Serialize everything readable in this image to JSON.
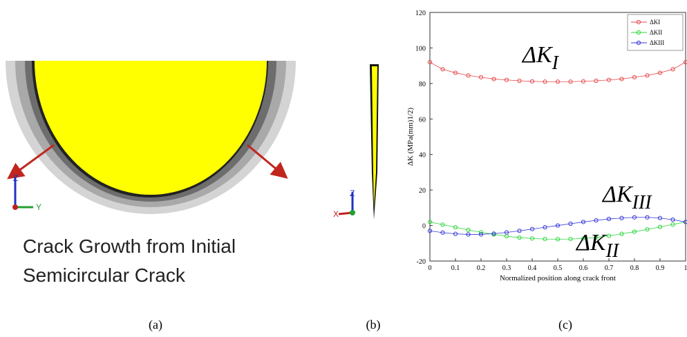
{
  "figure": {
    "panel_a_caption_line1": "Crack Growth from Initial",
    "panel_a_caption_line2": "Semicircular Crack",
    "axis_z": "Z",
    "axis_y": "Y",
    "axis_x": "X",
    "captions": [
      "(a)",
      "(b)",
      "(c)"
    ]
  },
  "chart_data": {
    "type": "scatter-line",
    "xlabel": "Normalized position along crack front",
    "ylabel": "ΔK (MPa(mm)1/2)",
    "x": [
      0,
      0.05,
      0.1,
      0.15,
      0.2,
      0.25,
      0.3,
      0.35,
      0.4,
      0.45,
      0.5,
      0.55,
      0.6,
      0.65,
      0.7,
      0.75,
      0.8,
      0.85,
      0.9,
      0.95,
      1
    ],
    "series": [
      {
        "name": "ΔKI",
        "color": "#e8474a",
        "values": [
          92,
          88,
          86,
          84.5,
          83.5,
          82.5,
          82,
          81.5,
          81.2,
          81,
          81,
          81,
          81.2,
          81.5,
          82,
          82.5,
          83.5,
          84.5,
          86,
          88,
          92
        ]
      },
      {
        "name": "ΔKII",
        "color": "#2bd63a",
        "values": [
          2,
          0.5,
          -1,
          -2.5,
          -3.8,
          -5,
          -6,
          -6.8,
          -7.3,
          -7.6,
          -7.7,
          -7.6,
          -7.3,
          -6.7,
          -5.8,
          -4.7,
          -3.5,
          -2.2,
          -0.8,
          0.6,
          2
        ]
      },
      {
        "name": "ΔKIII",
        "color": "#3434d8",
        "values": [
          -3,
          -4,
          -4.7,
          -5,
          -5,
          -4.6,
          -3.9,
          -3,
          -2,
          -1,
          0,
          1,
          2,
          2.9,
          3.7,
          4.2,
          4.6,
          4.6,
          4.2,
          3.3,
          2
        ]
      }
    ],
    "annotations": [
      {
        "text": "ΔK",
        "sub": "I"
      },
      {
        "text": "ΔK",
        "sub": "III"
      },
      {
        "text": "ΔK",
        "sub": "II"
      }
    ],
    "xlim": [
      0,
      1
    ],
    "xticks": [
      0,
      0.1,
      0.2,
      0.3,
      0.4,
      0.5,
      0.6,
      0.7,
      0.8,
      0.9,
      1
    ],
    "ylim": [
      -20,
      120
    ],
    "yticks": [
      -20,
      0,
      20,
      40,
      60,
      80,
      100,
      120
    ],
    "legend": "upper right"
  }
}
